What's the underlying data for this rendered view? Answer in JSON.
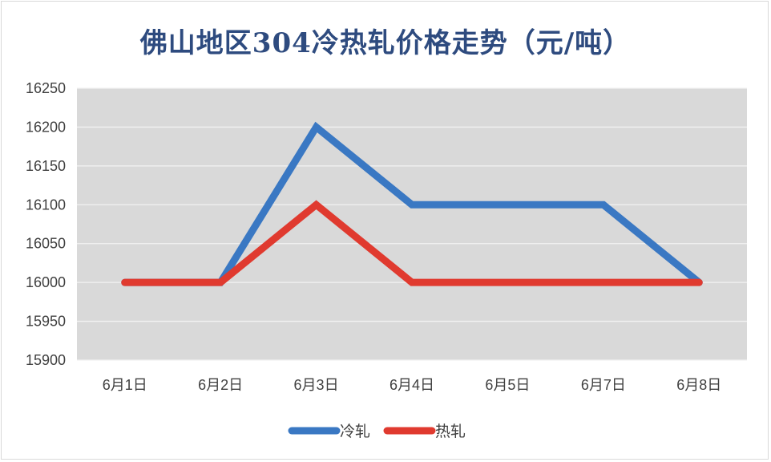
{
  "chart_data": {
    "type": "line",
    "title": "佛山地区304冷热轧价格走势（元/吨）",
    "categories": [
      "6月1日",
      "6月2日",
      "6月3日",
      "6月4日",
      "6月5日",
      "6月7日",
      "6月8日"
    ],
    "series": [
      {
        "name": "冷轧",
        "color": "#3a78c3",
        "values": [
          16000,
          16000,
          16200,
          16100,
          16100,
          16100,
          16000
        ]
      },
      {
        "name": "热轧",
        "color": "#e03a2f",
        "values": [
          16000,
          16000,
          16100,
          16000,
          16000,
          16000,
          16000
        ]
      }
    ],
    "ylim": [
      15900,
      16250
    ],
    "yticks": [
      15900,
      15950,
      16000,
      16050,
      16100,
      16150,
      16200,
      16250
    ],
    "grid": true,
    "legend_position": "bottom",
    "plot_background": "#d9d9d9",
    "gridline_color": "#f2f2f2"
  }
}
